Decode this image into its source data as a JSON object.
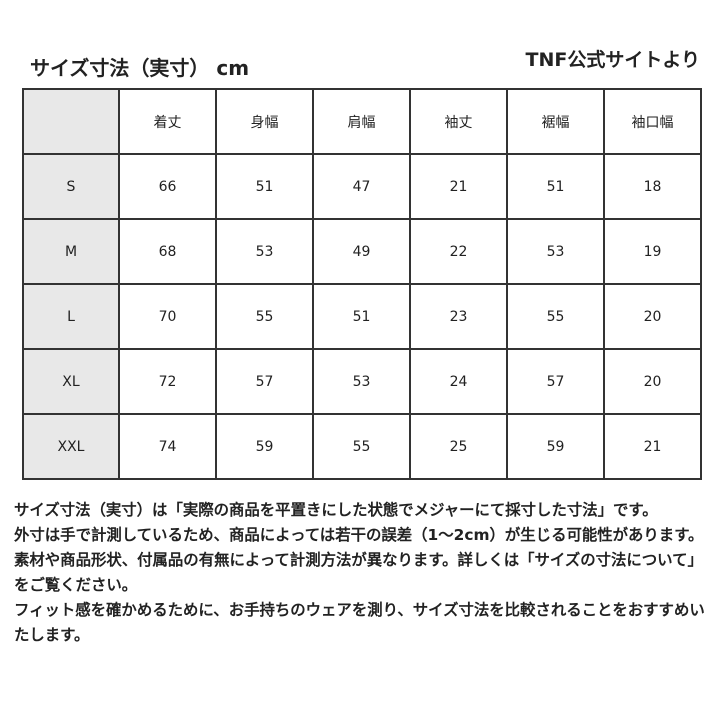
{
  "header": {
    "title": "サイズ寸法（実寸） cm",
    "source": "TNF公式サイトより"
  },
  "table": {
    "columns": [
      "着丈",
      "身幅",
      "肩幅",
      "袖丈",
      "裾幅",
      "袖口幅"
    ],
    "rows": [
      [
        "S",
        "66",
        "51",
        "47",
        "21",
        "51",
        "18"
      ],
      [
        "M",
        "68",
        "53",
        "49",
        "22",
        "53",
        "19"
      ],
      [
        "L",
        "70",
        "55",
        "51",
        "23",
        "55",
        "20"
      ],
      [
        "XL",
        "72",
        "57",
        "53",
        "24",
        "57",
        "20"
      ],
      [
        "XXL",
        "74",
        "59",
        "55",
        "25",
        "59",
        "21"
      ]
    ]
  },
  "notes": [
    "サイズ寸法（実寸）は「実際の商品を平置きにした状態でメジャーにて採寸した寸法」です。",
    "外寸は手で計測しているため、商品によっては若干の誤差（1〜2cm）が生じる可能性があります。",
    "素材や商品形状、付属品の有無によって計測方法が異なります。詳しくは「サイズの寸法について」をご覧ください。",
    "フィット感を確かめるために、お手持ちのウェアを測り、サイズ寸法を比較されることをおすすめいたします。"
  ]
}
